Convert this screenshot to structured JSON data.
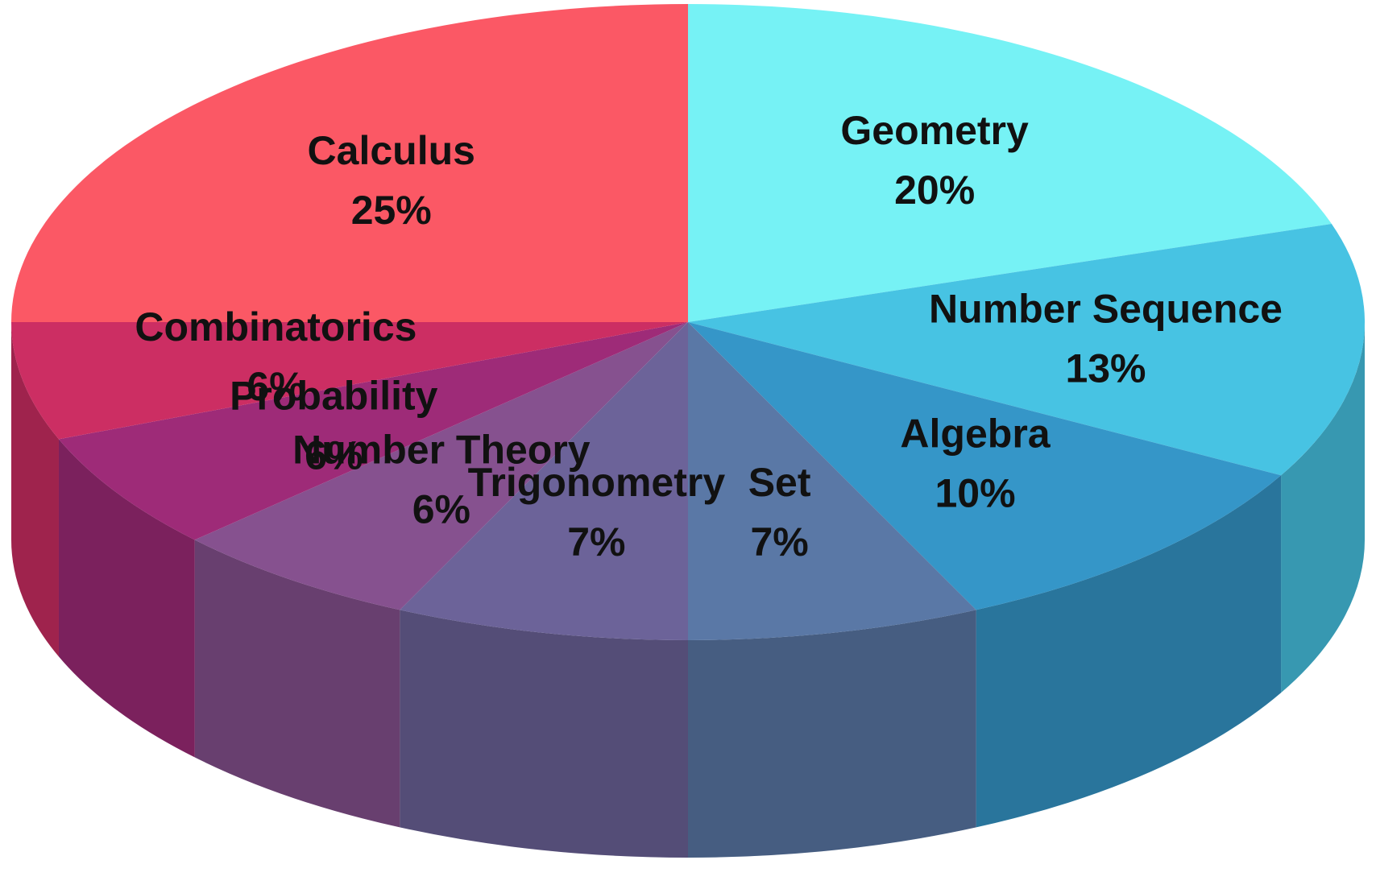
{
  "chart_data": {
    "type": "pie",
    "categories": [
      "Geometry",
      "Number Sequence",
      "Algebra",
      "Set",
      "Trigonometry",
      "Number Theory",
      "Probability",
      "Combinatorics",
      "Calculus"
    ],
    "values": [
      20,
      13,
      10,
      7,
      7,
      6,
      6,
      6,
      25
    ],
    "value_labels": [
      "20%",
      "13%",
      "10%",
      "7%",
      "7%",
      "6%",
      "6%",
      "6%",
      "25%"
    ],
    "colors": [
      "#76f2f5",
      "#47c3e3",
      "#3596c8",
      "#5a78a6",
      "#6c6399",
      "#86518f",
      "#9e2b78",
      "#cc2e63",
      "#fb5865"
    ]
  }
}
